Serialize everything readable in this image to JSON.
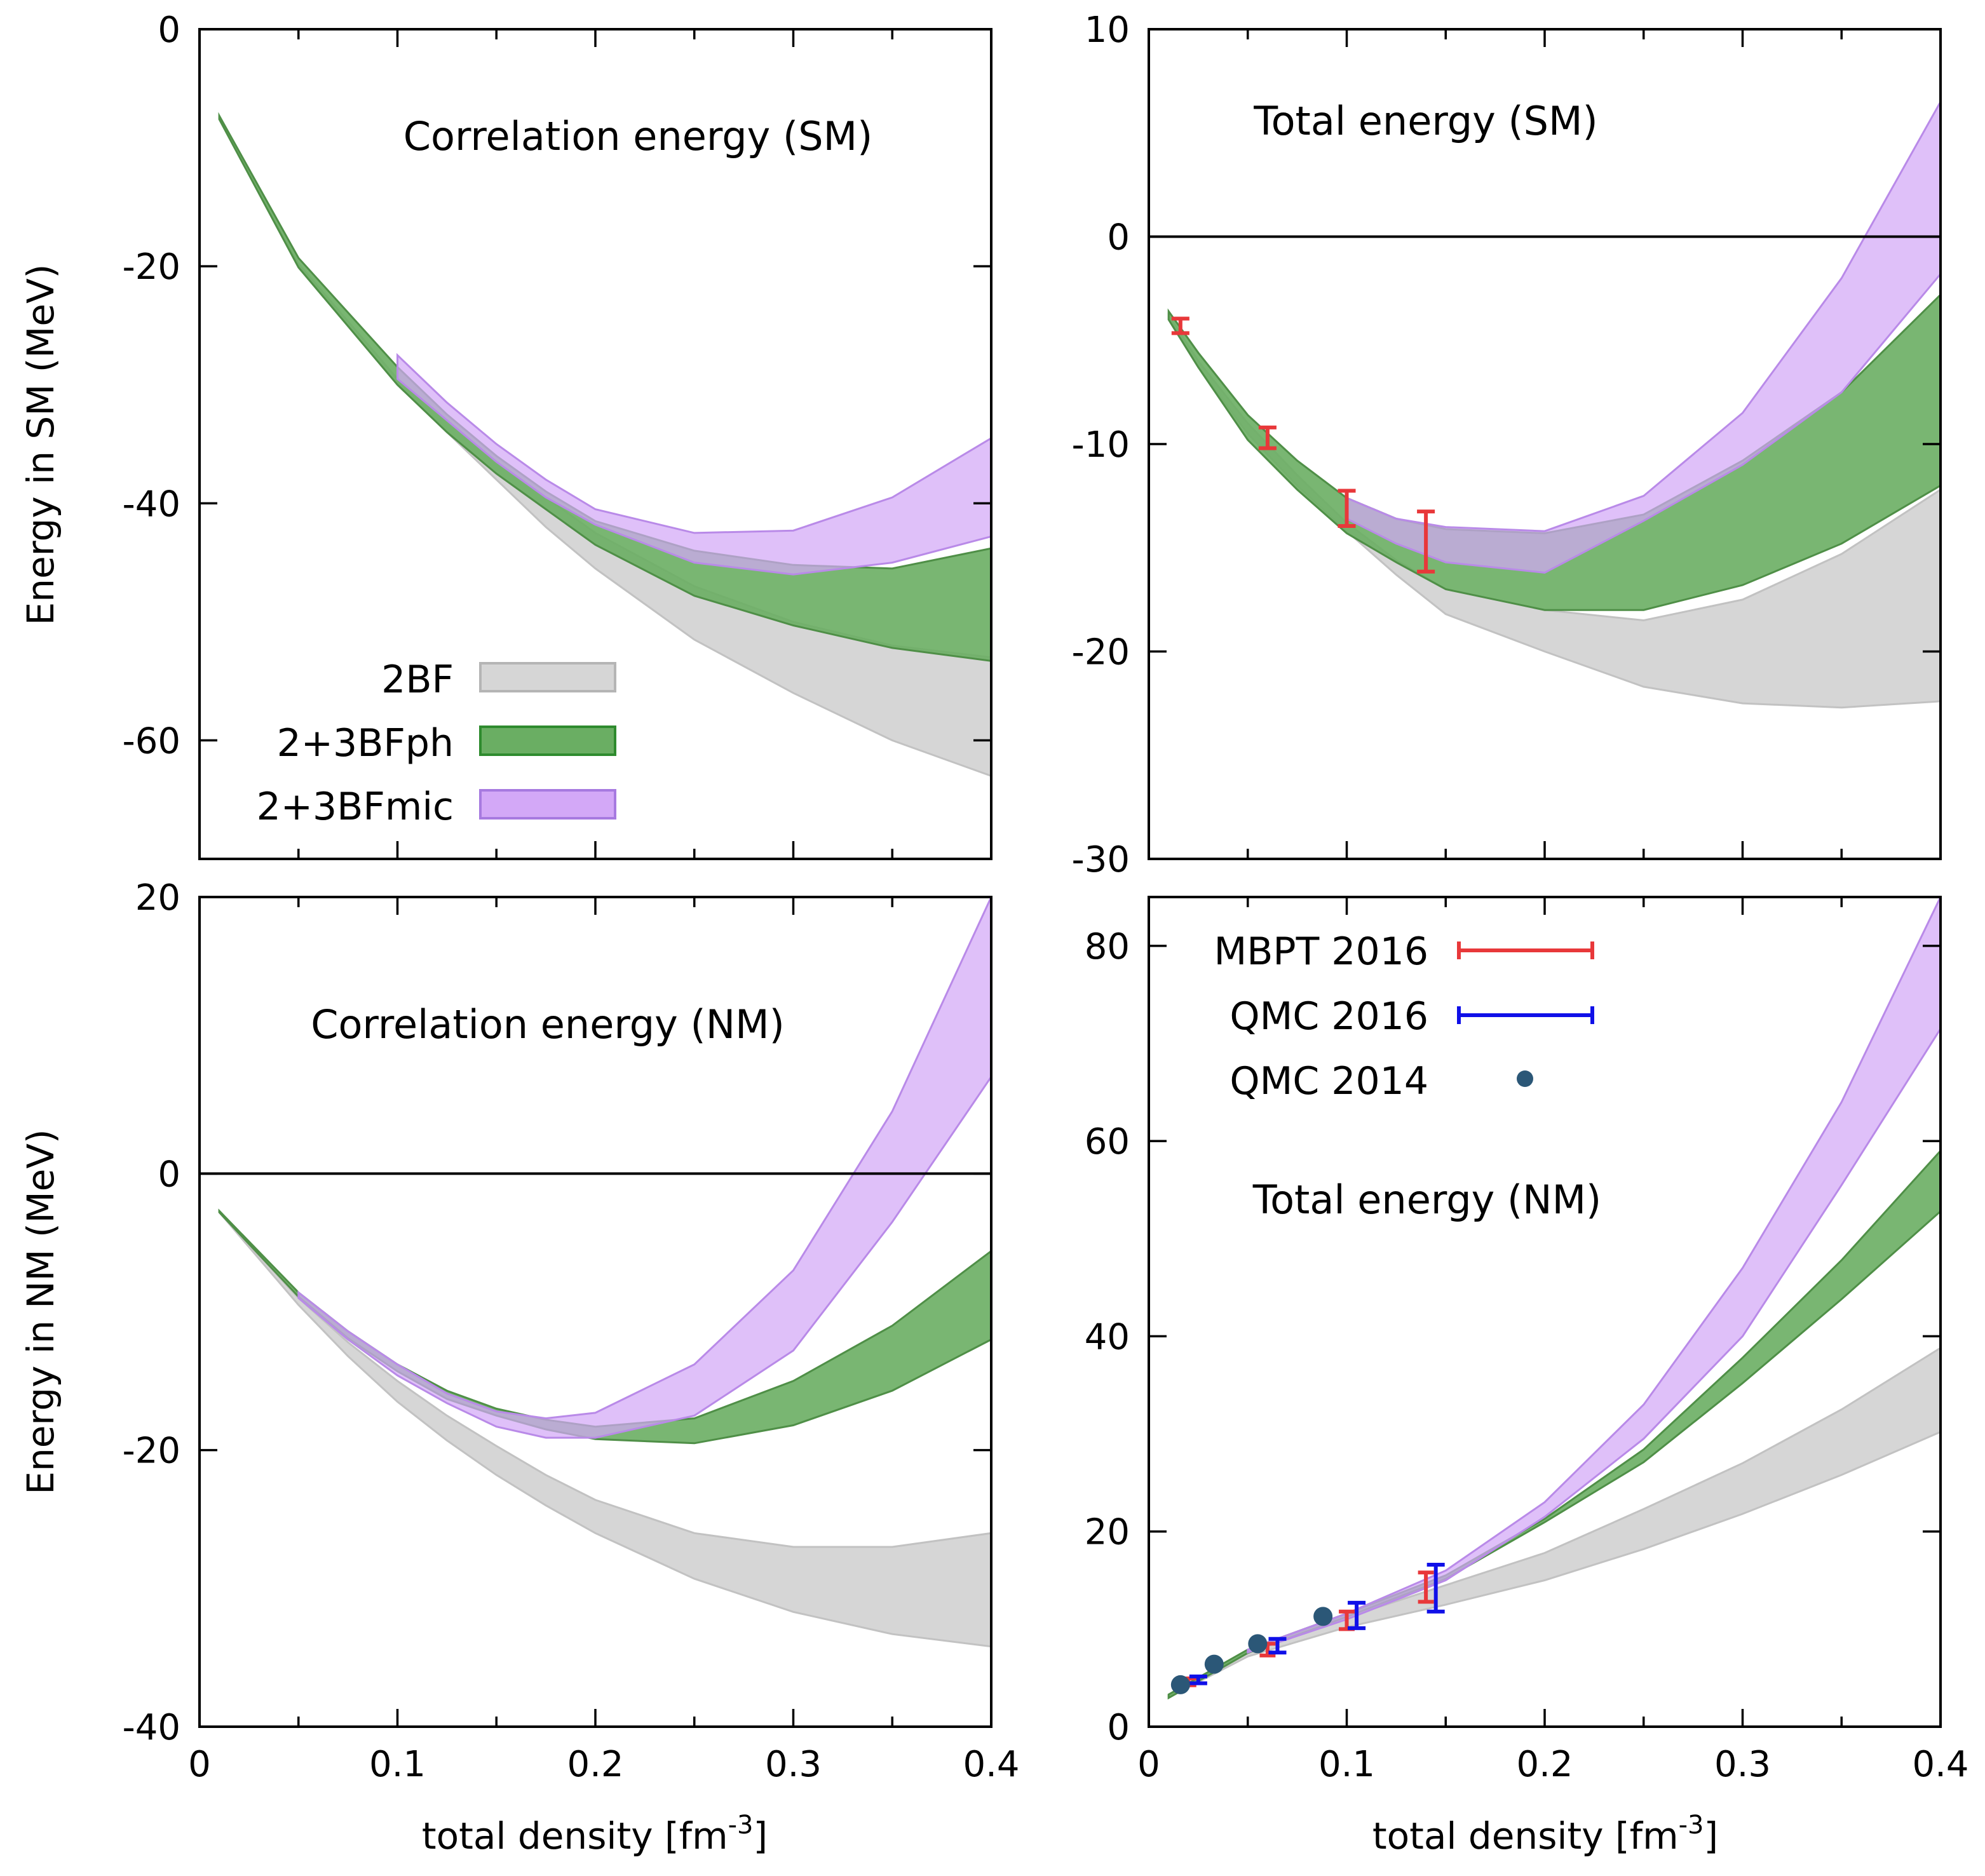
{
  "colors": {
    "band_2BF_fill": "#d6d6d6",
    "band_2BF_edge": "#c2c2c2",
    "band_ph_fill": "#6aae63",
    "band_ph_edge": "#4f8f47",
    "band_mic_fill": "#d3a8f7",
    "band_mic_edge": "#b98ae8",
    "overlap_tint": "#9e92cc",
    "mbpt": "#e8383a",
    "qmc2016": "#1010e8",
    "qmc2014": "#2b5777",
    "line": "#000000"
  },
  "legend_bands": [
    {
      "label": "2BF",
      "color": "#d6d6d6",
      "edge": "#b5b5b5"
    },
    {
      "label": "2+3BFph",
      "color": "#6aae63",
      "edge": "#2e8b2e"
    },
    {
      "label": "2+3BFmic",
      "color": "#d3a8f7",
      "edge": "#a77ae0"
    }
  ],
  "legend_points": [
    {
      "label": "MBPT 2016",
      "color": "#e8383a",
      "style": "errorbar"
    },
    {
      "label": "QMC 2016",
      "color": "#1010e8",
      "style": "errorbar"
    },
    {
      "label": "QMC 2014",
      "color": "#2b5777",
      "style": "dot"
    }
  ],
  "chart_data": [
    {
      "id": "corr_sm",
      "type": "area",
      "title": "Correlation energy (SM)",
      "xlabel": "",
      "ylabel": "Energy in SM (MeV)",
      "xlim": [
        0,
        0.4
      ],
      "ylim": [
        -70,
        0
      ],
      "xticks": [],
      "yticks": [
        "0",
        "-20",
        "-40",
        "-60"
      ],
      "ytick_values": [
        0,
        -20,
        -40,
        -60
      ],
      "series": [
        {
          "name": "2BF",
          "x": [
            0.01,
            0.05,
            0.1,
            0.125,
            0.15,
            0.175,
            0.2,
            0.25,
            0.3,
            0.35,
            0.4
          ],
          "upper": [
            -7.5,
            -20,
            -30,
            -34,
            -38,
            -42,
            -45.5,
            -51.5,
            -56,
            -60,
            -63
          ],
          "lower": [
            -7.5,
            -20,
            -30,
            -34,
            -38,
            -42,
            -45.5,
            -51.5,
            -56,
            -60,
            -63
          ]
        },
        {
          "name": "2BF_band_top",
          "x": [
            0.01,
            0.05,
            0.1,
            0.125,
            0.15,
            0.175,
            0.2,
            0.25,
            0.3,
            0.35,
            0.4
          ],
          "upper": [
            -7.5,
            -19.8,
            -29.5,
            -33,
            -36.5,
            -39.5,
            -42.5,
            -47,
            -50,
            -52,
            -53
          ],
          "lower": [
            -7.5,
            -20,
            -30,
            -34,
            -38,
            -42,
            -45.5,
            -51.5,
            -56,
            -60,
            -63
          ]
        },
        {
          "name": "2+3BFph",
          "x": [
            0.01,
            0.05,
            0.1,
            0.125,
            0.15,
            0.175,
            0.2,
            0.25,
            0.3,
            0.35,
            0.4
          ],
          "upper": [
            -7.3,
            -19.3,
            -28.5,
            -32.5,
            -36,
            -39,
            -41.5,
            -44,
            -45.2,
            -45.5,
            -43.8
          ],
          "lower": [
            -7.6,
            -20.1,
            -30,
            -34,
            -37.5,
            -40.5,
            -43.5,
            -47.8,
            -50.3,
            -52.2,
            -53.3
          ]
        },
        {
          "name": "2+3BFmic",
          "x": [
            0.1,
            0.125,
            0.15,
            0.175,
            0.2,
            0.25,
            0.3,
            0.35,
            0.4
          ],
          "upper": [
            -27.5,
            -31.5,
            -35,
            -38,
            -40.5,
            -42.5,
            -42.3,
            -39.5,
            -34.5
          ],
          "lower": [
            -29.5,
            -33,
            -36.5,
            -39.5,
            -41.8,
            -45,
            -46,
            -45,
            -42.8
          ]
        }
      ],
      "zero_line": false
    },
    {
      "id": "total_sm",
      "type": "area",
      "title": "Total energy (SM)",
      "xlabel": "",
      "ylabel": "",
      "xlim": [
        0,
        0.4
      ],
      "ylim": [
        -30,
        10
      ],
      "xticks": [],
      "yticks": [
        "10",
        "0",
        "-10",
        "-20",
        "-30"
      ],
      "ytick_values": [
        10,
        0,
        -10,
        -20,
        -30
      ],
      "series": [
        {
          "name": "2BF",
          "x": [
            0.01,
            0.025,
            0.05,
            0.075,
            0.1,
            0.125,
            0.15,
            0.2,
            0.25,
            0.3,
            0.35,
            0.4
          ],
          "upper": [
            -3.8,
            -6,
            -9,
            -11.5,
            -13.8,
            -15.6,
            -17,
            -18,
            -18.5,
            -17.5,
            -15.3,
            -12.2
          ],
          "lower": [
            -4,
            -6.3,
            -9.5,
            -12,
            -14.2,
            -16.3,
            -18.2,
            -20,
            -21.7,
            -22.5,
            -22.7,
            -22.4
          ]
        },
        {
          "name": "2+3BFph",
          "x": [
            0.01,
            0.025,
            0.05,
            0.075,
            0.1,
            0.125,
            0.15,
            0.2,
            0.25,
            0.3,
            0.35,
            0.4
          ],
          "upper": [
            -3.6,
            -5.6,
            -8.6,
            -10.8,
            -12.6,
            -13.6,
            -14.1,
            -14.3,
            -13.4,
            -10.8,
            -7.5,
            -2.8
          ],
          "lower": [
            -4,
            -6.3,
            -9.8,
            -12.2,
            -14.3,
            -15.7,
            -17,
            -18,
            -18,
            -16.8,
            -14.8,
            -12
          ]
        },
        {
          "name": "2+3BFmic",
          "x": [
            0.1,
            0.125,
            0.15,
            0.2,
            0.25,
            0.3,
            0.35,
            0.4
          ],
          "upper": [
            -12.6,
            -13.6,
            -14,
            -14.2,
            -12.5,
            -8.5,
            -2,
            6.5
          ],
          "lower": [
            -13.6,
            -14.8,
            -15.7,
            -16.2,
            -13.7,
            -11,
            -7.5,
            -1.8
          ]
        }
      ],
      "points": [
        {
          "name": "MBPT 2016",
          "x": [
            0.016,
            0.06,
            0.1,
            0.14
          ],
          "y": [
            -4.3,
            -9.7,
            -13.1,
            -14.7
          ],
          "err": [
            0.35,
            0.5,
            0.85,
            1.45
          ],
          "capw": [
            0.0045,
            0.0045,
            0.0045,
            0.0045
          ]
        }
      ],
      "zero_line": true
    },
    {
      "id": "corr_nm",
      "type": "area",
      "title": "Correlation energy (NM)",
      "xlabel": "total density [fm-3]",
      "ylabel": "Energy in NM (MeV)",
      "xlim": [
        0,
        0.4
      ],
      "ylim": [
        -40,
        20
      ],
      "xticks": [
        "0",
        "0.1",
        "0.2",
        "0.3",
        "0.4"
      ],
      "xtick_values": [
        0,
        0.1,
        0.2,
        0.3,
        0.4
      ],
      "yticks": [
        "20",
        "0",
        "-20",
        "-40"
      ],
      "ytick_values": [
        20,
        0,
        -20,
        -40
      ],
      "series": [
        {
          "name": "2BF",
          "x": [
            0.01,
            0.05,
            0.075,
            0.1,
            0.125,
            0.15,
            0.175,
            0.2,
            0.25,
            0.3,
            0.35,
            0.4
          ],
          "upper": [
            -2.8,
            -9,
            -12.2,
            -15,
            -17.5,
            -19.7,
            -21.8,
            -23.6,
            -26,
            -27,
            -27,
            -26
          ],
          "lower": [
            -2.8,
            -9.5,
            -13.2,
            -16.5,
            -19.3,
            -21.8,
            -24,
            -26,
            -29.3,
            -31.7,
            -33.3,
            -34.2
          ]
        },
        {
          "name": "2+3BFph",
          "x": [
            0.01,
            0.05,
            0.075,
            0.1,
            0.125,
            0.15,
            0.175,
            0.2,
            0.25,
            0.3,
            0.35,
            0.4
          ],
          "upper": [
            -2.7,
            -8.6,
            -11.4,
            -13.8,
            -15.7,
            -17,
            -17.8,
            -18.3,
            -17.7,
            -15,
            -11,
            -5.6
          ],
          "lower": [
            -2.8,
            -8.9,
            -11.9,
            -14.3,
            -16.3,
            -17.5,
            -18.5,
            -19.2,
            -19.5,
            -18.2,
            -15.7,
            -12
          ]
        },
        {
          "name": "2+3BFmic",
          "x": [
            0.05,
            0.075,
            0.1,
            0.125,
            0.15,
            0.175,
            0.2,
            0.25,
            0.3,
            0.35,
            0.4
          ],
          "upper": [
            -8.6,
            -11.4,
            -13.8,
            -15.9,
            -17.2,
            -17.7,
            -17.3,
            -13.8,
            -7,
            4.5,
            20
          ],
          "lower": [
            -9,
            -12,
            -14.6,
            -16.6,
            -18.3,
            -19.1,
            -19.1,
            -17.5,
            -12.8,
            -3.5,
            7
          ]
        }
      ],
      "zero_line": true
    },
    {
      "id": "total_nm",
      "type": "area",
      "title": "Total energy (NM)",
      "xlabel": "total density [fm-3]",
      "ylabel": "",
      "xlim": [
        0,
        0.4
      ],
      "ylim": [
        0,
        85
      ],
      "xticks": [
        "0",
        "0.1",
        "0.2",
        "0.3",
        "0.4"
      ],
      "xtick_values": [
        0,
        0.1,
        0.2,
        0.3,
        0.4
      ],
      "yticks": [
        "80",
        "60",
        "40",
        "20",
        "0"
      ],
      "ytick_values": [
        80,
        60,
        40,
        20,
        0
      ],
      "series": [
        {
          "name": "2BF",
          "x": [
            0.01,
            0.05,
            0.1,
            0.15,
            0.2,
            0.25,
            0.3,
            0.35,
            0.4
          ],
          "upper": [
            3.2,
            7.6,
            11.2,
            14.5,
            17.8,
            22.3,
            27,
            32.5,
            38.8
          ],
          "lower": [
            3,
            7.2,
            10.2,
            12.5,
            15,
            18.2,
            21.8,
            25.8,
            30.2
          ]
        },
        {
          "name": "2+3BFph",
          "x": [
            0.01,
            0.05,
            0.1,
            0.15,
            0.2,
            0.25,
            0.3,
            0.35,
            0.4
          ],
          "upper": [
            3.3,
            7.9,
            11.6,
            15.5,
            21.3,
            28.4,
            37.8,
            47.8,
            59
          ]
        },
        {
          "name": "2+3BFmic",
          "x": [
            0.05,
            0.1,
            0.15,
            0.2,
            0.25,
            0.3,
            0.35,
            0.4
          ],
          "upper": [
            7.9,
            11.6,
            16,
            23,
            33,
            47,
            64,
            85
          ],
          "lower": [
            7.6,
            11,
            15,
            21.5,
            29.5,
            40,
            55.5,
            71.5
          ]
        }
      ],
      "points": [
        {
          "name": "MBPT 2016",
          "x": [
            0.02,
            0.06,
            0.1,
            0.14
          ],
          "y": [
            4.6,
            7.9,
            10.9,
            14.3
          ],
          "err": [
            0.35,
            0.6,
            0.9,
            1.5
          ],
          "capw": [
            0.004,
            0.004,
            0.004,
            0.004
          ]
        },
        {
          "name": "QMC 2016",
          "x": [
            0.025,
            0.065,
            0.105,
            0.145
          ],
          "y": [
            4.8,
            8.3,
            11.4,
            14.2
          ],
          "err": [
            0.35,
            0.7,
            1.3,
            2.4
          ],
          "capw": [
            0.0045,
            0.0045,
            0.0045,
            0.0045
          ]
        },
        {
          "name": "QMC 2014",
          "x": [
            0.016,
            0.033,
            0.055,
            0.088
          ],
          "y": [
            4.3,
            6.4,
            8.5,
            11.3
          ]
        }
      ],
      "zero_line": false
    }
  ]
}
